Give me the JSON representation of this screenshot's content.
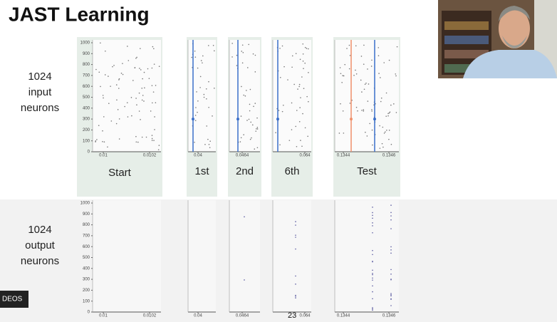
{
  "title": "JAST Learning",
  "rows": [
    {
      "label": [
        "1024",
        "input",
        "neurons"
      ]
    },
    {
      "label": [
        "1024",
        "output",
        "neurons"
      ]
    }
  ],
  "yticks": [
    0,
    100,
    200,
    300,
    400,
    500,
    600,
    700,
    800,
    900,
    1000
  ],
  "panels": [
    {
      "label": "Start",
      "xticks": [
        0.01,
        0.0102
      ]
    },
    {
      "label": "1st",
      "xticks": [
        0.04
      ]
    },
    {
      "label": "2nd",
      "xticks": [
        0.0464
      ]
    },
    {
      "label": "6th",
      "xticks": [
        0.064
      ]
    },
    {
      "label": "Test",
      "xticks": [
        0.1344,
        0.1346
      ]
    }
  ],
  "overlay_caption": "DEOS",
  "page_number": "23"
}
